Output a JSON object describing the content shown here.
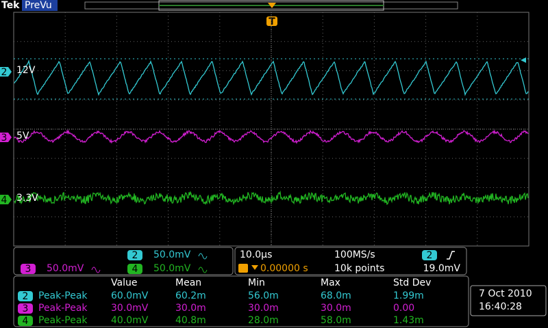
{
  "header": {
    "brand": "Tek",
    "mode": "PreVu",
    "trigger_marker": "T"
  },
  "channels": [
    {
      "number": "2",
      "label": "12V",
      "color": "#33c9d2"
    },
    {
      "number": "3",
      "label": "5V",
      "color": "#d21fd2"
    },
    {
      "number": "4",
      "label": "3.3V",
      "color": "#22b522"
    }
  ],
  "vertical_settings": [
    {
      "channel": "2",
      "scale": "50.0mV"
    },
    {
      "channel": "3",
      "scale": "50.0mV"
    },
    {
      "channel": "4",
      "scale": "50.0mV"
    }
  ],
  "horizontal": {
    "time_per_div": "10.0µs",
    "sample_rate": "100MS/s",
    "trigger_position": "0.00000 s",
    "record_length": "10k points",
    "trigger_channel": "2",
    "trigger_level": "19.0mV"
  },
  "measurements": {
    "headers": [
      "Value",
      "Mean",
      "Min",
      "Max",
      "Std Dev"
    ],
    "rows": [
      {
        "channel": "2",
        "type": "Peak-Peak",
        "cells": [
          "60.0mV",
          "60.2m",
          "56.0m",
          "68.0m",
          "1.99m"
        ]
      },
      {
        "channel": "3",
        "type": "Peak-Peak",
        "cells": [
          "30.0mV",
          "30.0m",
          "30.0m",
          "30.0m",
          "0.00"
        ]
      },
      {
        "channel": "4",
        "type": "Peak-Peak",
        "cells": [
          "40.0mV",
          "40.8m",
          "28.0m",
          "58.0m",
          "1.43m"
        ]
      }
    ]
  },
  "status": {
    "date": "7 Oct 2010",
    "time": "16:40:28"
  }
}
